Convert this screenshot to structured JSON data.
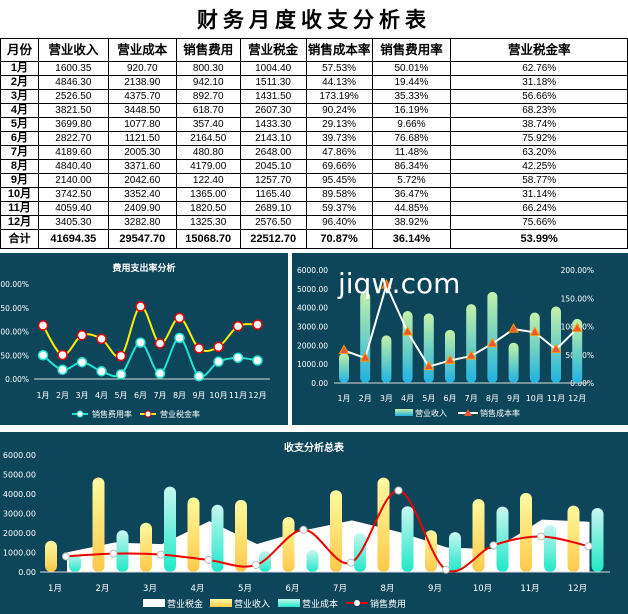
{
  "title": "财务月度收支分析表",
  "table": {
    "headers": [
      "月份",
      "营业收入",
      "营业成本",
      "销售费用",
      "营业税金",
      "销售成本率",
      "销售费用率",
      "营业税金率"
    ],
    "rows": [
      [
        "1月",
        "1600.35",
        "920.70",
        "800.30",
        "1004.40",
        "57.53%",
        "50.01%",
        "62.76%"
      ],
      [
        "2月",
        "4846.30",
        "2138.90",
        "942.10",
        "1511.30",
        "44.13%",
        "19.44%",
        "31.18%"
      ],
      [
        "3月",
        "2526.50",
        "4375.70",
        "892.70",
        "1431.50",
        "173.19%",
        "35.33%",
        "56.66%"
      ],
      [
        "4月",
        "3821.50",
        "3448.50",
        "618.70",
        "2607.30",
        "90.24%",
        "16.19%",
        "68.23%"
      ],
      [
        "5月",
        "3699.80",
        "1077.80",
        "357.40",
        "1433.30",
        "29.13%",
        "9.66%",
        "38.74%"
      ],
      [
        "6月",
        "2822.70",
        "1121.50",
        "2164.50",
        "2143.10",
        "39.73%",
        "76.68%",
        "75.92%"
      ],
      [
        "7月",
        "4189.60",
        "2005.30",
        "480.80",
        "2648.00",
        "47.86%",
        "11.48%",
        "63.20%"
      ],
      [
        "8月",
        "4840.40",
        "3371.60",
        "4179.00",
        "2045.10",
        "69.66%",
        "86.34%",
        "42.25%"
      ],
      [
        "9月",
        "2140.00",
        "2042.60",
        "122.40",
        "1257.70",
        "95.45%",
        "5.72%",
        "58.77%"
      ],
      [
        "10月",
        "3742.50",
        "3352.40",
        "1365.00",
        "1165.40",
        "89.58%",
        "36.47%",
        "31.14%"
      ],
      [
        "11月",
        "4059.40",
        "2409.90",
        "1820.50",
        "2689.10",
        "59.37%",
        "44.85%",
        "66.24%"
      ],
      [
        "12月",
        "3405.30",
        "3282.80",
        "1325.30",
        "2576.50",
        "96.40%",
        "38.92%",
        "75.66%"
      ]
    ],
    "total": [
      "合计",
      "41694.35",
      "29547.70",
      "15068.70",
      "22512.70",
      "70.87%",
      "36.14%",
      "53.99%"
    ]
  },
  "watermark": "jiqw.com",
  "chart_data": [
    {
      "type": "line",
      "title": "费用支出率分析",
      "stacked": true,
      "categories": [
        "1月",
        "2月",
        "3月",
        "4月",
        "5月",
        "6月",
        "7月",
        "8月",
        "9月",
        "10月",
        "11月",
        "12月"
      ],
      "yticks": [
        "0.00%",
        "50.00%",
        "100.00%",
        "150.00%",
        "200.00%"
      ],
      "ylim": [
        0,
        200
      ],
      "series": [
        {
          "name": "销售费用率",
          "values": [
            50.01,
            19.44,
            35.33,
            16.19,
            9.66,
            76.68,
            11.48,
            86.34,
            5.72,
            36.47,
            44.85,
            38.92
          ],
          "color": "#21e3cf"
        },
        {
          "name": "营业税金率",
          "values": [
            62.76,
            31.18,
            56.66,
            68.23,
            38.74,
            75.92,
            63.2,
            42.25,
            58.77,
            31.14,
            66.24,
            75.66
          ],
          "color": "#ffee00"
        }
      ],
      "legend": "bottom"
    },
    {
      "type": "bar+line",
      "categories": [
        "1月",
        "2月",
        "3月",
        "4月",
        "5月",
        "6月",
        "7月",
        "8月",
        "9月",
        "10月",
        "11月",
        "12月"
      ],
      "yticks": [
        "0.00",
        "1000.00",
        "2000.00",
        "3000.00",
        "4000.00",
        "5000.00",
        "6000.00"
      ],
      "ylim": [
        0,
        6000
      ],
      "y2ticks": [
        "0.00%",
        "50.00%",
        "100.00%",
        "150.00%",
        "200.00%"
      ],
      "y2lim": [
        0,
        200
      ],
      "series": [
        {
          "name": "营业收入",
          "type": "bar",
          "values": [
            1600.35,
            4846.3,
            2526.5,
            3821.5,
            3699.8,
            2822.7,
            4189.6,
            4840.4,
            2140.0,
            3742.5,
            4059.4,
            3405.3
          ]
        },
        {
          "name": "销售成本率",
          "type": "line",
          "axis": "right",
          "values": [
            57.53,
            44.13,
            173.19,
            90.24,
            29.13,
            39.73,
            47.86,
            69.66,
            95.45,
            89.58,
            59.37,
            96.4
          ]
        }
      ],
      "legend": "bottom"
    },
    {
      "type": "combo",
      "title": "收支分析总表",
      "categories": [
        "1月",
        "2月",
        "3月",
        "4月",
        "5月",
        "6月",
        "7月",
        "8月",
        "9月",
        "10月",
        "11月",
        "12月"
      ],
      "yticks": [
        "0.00",
        "1000.00",
        "2000.00",
        "3000.00",
        "4000.00",
        "5000.00",
        "6000.00"
      ],
      "ylim": [
        0,
        6000
      ],
      "series": [
        {
          "name": "营业税金",
          "type": "area",
          "values": [
            1004.4,
            1511.3,
            1431.5,
            2607.3,
            1433.3,
            2143.1,
            2648.0,
            2045.1,
            1257.7,
            1165.4,
            2689.1,
            2576.5
          ]
        },
        {
          "name": "营业收入",
          "type": "bar",
          "values": [
            1600.35,
            4846.3,
            2526.5,
            3821.5,
            3699.8,
            2822.7,
            4189.6,
            4840.4,
            2140.0,
            3742.5,
            4059.4,
            3405.3
          ]
        },
        {
          "name": "营业成本",
          "type": "bar",
          "values": [
            920.7,
            2138.9,
            4375.7,
            3448.5,
            1077.8,
            1121.5,
            2005.3,
            3371.6,
            2042.6,
            3352.4,
            2409.9,
            3282.8
          ]
        },
        {
          "name": "销售费用",
          "type": "line",
          "values": [
            800.3,
            942.1,
            892.7,
            618.7,
            357.4,
            2164.5,
            480.8,
            4179.0,
            122.4,
            1365.0,
            1820.5,
            1325.3
          ]
        }
      ],
      "legend": "bottom"
    }
  ]
}
